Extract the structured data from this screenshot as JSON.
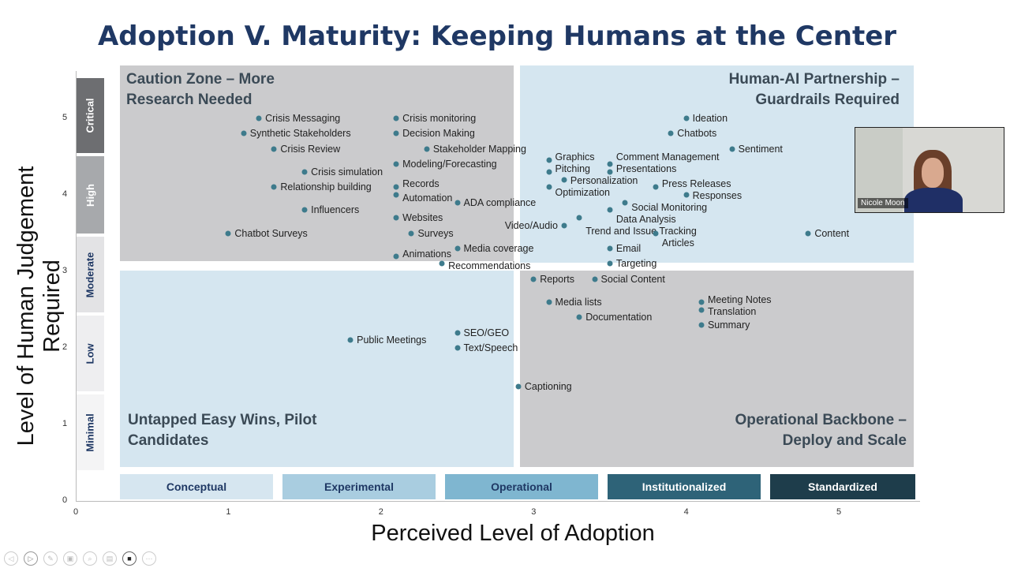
{
  "slide_title": "Adoption V. Maturity: Keeping Humans at the Center",
  "quadrants": {
    "top_left": "Caution Zone – More Research Needed",
    "top_right": "Human-AI Partnership – Guardrails Required",
    "bottom_left": "Untapped Easy Wins, Pilot Candidates",
    "bottom_right": "Operational Backbone – Deploy and Scale"
  },
  "colors": {
    "point": "#3e7b8c",
    "title": "#1f3864",
    "quadrant_grey": "#cbcbcd",
    "quadrant_blue": "#d5e6f0"
  },
  "chart_data": {
    "type": "scatter",
    "title": "Adoption V. Maturity: Keeping Humans at the Center",
    "xlabel": "Perceived Level of Adoption",
    "ylabel": "Level of Human Judgement Required",
    "xlim": [
      0,
      5.5
    ],
    "ylim": [
      0,
      5.5
    ],
    "xticks": [
      "0",
      "1",
      "2",
      "3",
      "4",
      "5"
    ],
    "yticks": [
      "0",
      "1",
      "2",
      "3",
      "4",
      "5"
    ],
    "grid": false,
    "x_bands": [
      "Conceptual",
      "Experimental",
      "Operational",
      "Institutionalized",
      "Standardized"
    ],
    "y_bands": [
      "Critical",
      "High",
      "Moderate",
      "Low",
      "Minimal"
    ],
    "points": [
      {
        "label": "Crisis Messaging",
        "x": 1.2,
        "y": 5.0
      },
      {
        "label": "Synthetic Stakeholders",
        "x": 1.1,
        "y": 4.8
      },
      {
        "label": "Crisis Review",
        "x": 1.3,
        "y": 4.6
      },
      {
        "label": "Crisis simulation",
        "x": 1.5,
        "y": 4.3
      },
      {
        "label": "Relationship building",
        "x": 1.3,
        "y": 4.1
      },
      {
        "label": "Influencers",
        "x": 1.5,
        "y": 3.8
      },
      {
        "label": "Chatbot Surveys",
        "x": 1.0,
        "y": 3.5
      },
      {
        "label": "Crisis monitoring",
        "x": 2.1,
        "y": 5.0
      },
      {
        "label": "Decision Making",
        "x": 2.1,
        "y": 4.8
      },
      {
        "label": "Stakeholder Mapping",
        "x": 2.3,
        "y": 4.6
      },
      {
        "label": "Modeling/Forecasting",
        "x": 2.1,
        "y": 4.4
      },
      {
        "label": "Records",
        "x": 2.1,
        "y": 4.1
      },
      {
        "label": "Automation",
        "x": 2.1,
        "y": 4.0
      },
      {
        "label": "ADA compliance",
        "x": 2.5,
        "y": 3.9
      },
      {
        "label": "Websites",
        "x": 2.1,
        "y": 3.7
      },
      {
        "label": "Surveys",
        "x": 2.2,
        "y": 3.5
      },
      {
        "label": "Media coverage",
        "x": 2.5,
        "y": 3.3
      },
      {
        "label": "Animations",
        "x": 2.1,
        "y": 3.2
      },
      {
        "label": "Recommendations",
        "x": 2.4,
        "y": 3.1
      },
      {
        "label": "Graphics",
        "x": 3.1,
        "y": 4.45
      },
      {
        "label": "Pitching",
        "x": 3.1,
        "y": 4.3
      },
      {
        "label": "Personalization",
        "x": 3.2,
        "y": 4.2
      },
      {
        "label": "Optimization",
        "x": 3.1,
        "y": 4.1
      },
      {
        "label": "Comment Management",
        "x": 3.5,
        "y": 4.4
      },
      {
        "label": "Presentations",
        "x": 3.5,
        "y": 4.3
      },
      {
        "label": "Press Releases",
        "x": 3.8,
        "y": 4.1
      },
      {
        "label": "Responses",
        "x": 4.0,
        "y": 4.0
      },
      {
        "label": "Social Monitoring",
        "x": 3.6,
        "y": 3.9
      },
      {
        "label": "Data Analysis",
        "x": 3.5,
        "y": 3.8
      },
      {
        "label": "Trend and Issue Tracking",
        "x": 3.3,
        "y": 3.7
      },
      {
        "label": "Video/Audio",
        "x": 3.2,
        "y": 3.6
      },
      {
        "label": "Articles",
        "x": 3.8,
        "y": 3.5
      },
      {
        "label": "Content",
        "x": 4.8,
        "y": 3.5
      },
      {
        "label": "Ideation",
        "x": 4.0,
        "y": 5.0
      },
      {
        "label": "Chatbots",
        "x": 3.9,
        "y": 4.8
      },
      {
        "label": "Sentiment",
        "x": 4.3,
        "y": 4.6
      },
      {
        "label": "Email",
        "x": 3.5,
        "y": 3.3
      },
      {
        "label": "Targeting",
        "x": 3.5,
        "y": 3.1
      },
      {
        "label": "Reports",
        "x": 3.0,
        "y": 2.9
      },
      {
        "label": "Social Content",
        "x": 3.4,
        "y": 2.9
      },
      {
        "label": "Media lists",
        "x": 3.1,
        "y": 2.6
      },
      {
        "label": "Documentation",
        "x": 3.3,
        "y": 2.4
      },
      {
        "label": "Meeting Notes",
        "x": 4.1,
        "y": 2.6
      },
      {
        "label": "Translation",
        "x": 4.1,
        "y": 2.5
      },
      {
        "label": "Summary",
        "x": 4.1,
        "y": 2.3
      },
      {
        "label": "SEO/GEO",
        "x": 2.5,
        "y": 2.2
      },
      {
        "label": "Text/Speech",
        "x": 2.5,
        "y": 2.0
      },
      {
        "label": "Public Meetings",
        "x": 1.8,
        "y": 2.1
      },
      {
        "label": "Captioning",
        "x": 2.9,
        "y": 1.5
      }
    ]
  },
  "webcam": {
    "name": "Nicole Moon"
  },
  "toolbar": {
    "icons": [
      "previous-icon",
      "next-icon",
      "pen-icon",
      "slides-icon",
      "zoom-icon",
      "subtitles-icon",
      "camera-icon",
      "more-icon"
    ]
  }
}
